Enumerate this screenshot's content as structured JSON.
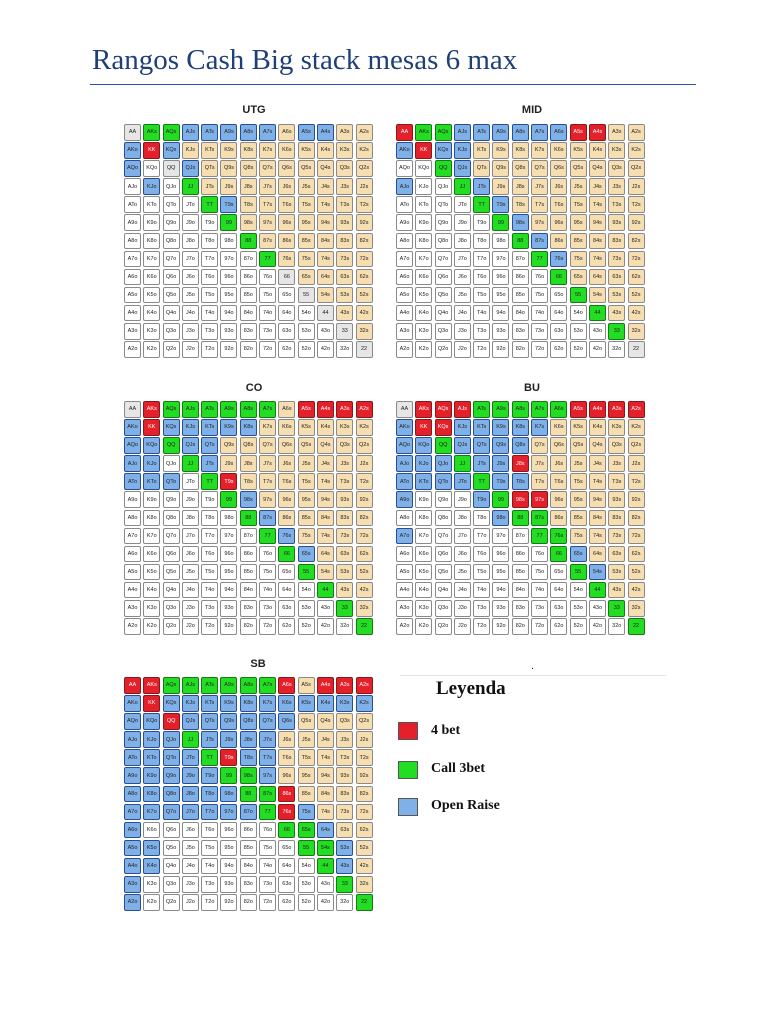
{
  "title": "Rangos Cash Big stack mesas 6 max",
  "ranks": [
    "A",
    "K",
    "Q",
    "J",
    "T",
    "9",
    "8",
    "7",
    "6",
    "5",
    "4",
    "3",
    "2"
  ],
  "colors": {
    "raise": "#7fb0e8",
    "call": "#22dd22",
    "fourbet": "#e4202b",
    "pair": "#e6e6e6",
    "suited": "#f6deb0",
    "offsuit": "#ffffff"
  },
  "panels": [
    {
      "id": "utg",
      "title": "UTG",
      "fourbet": [
        "KK"
      ],
      "call": [
        "AKs",
        "AQs",
        "JJ",
        "TT",
        "99",
        "88",
        "77"
      ],
      "raise": [
        "AJs",
        "ATs",
        "A9s",
        "A8s",
        "A7s",
        "A5s",
        "A4s",
        "AKo",
        "KQs",
        "AQo",
        "KJo",
        "QJs",
        "T9s"
      ]
    },
    {
      "id": "mid",
      "title": "MID",
      "fourbet": [
        "AA",
        "KK",
        "A5s",
        "A4s"
      ],
      "call": [
        "AKs",
        "AQs",
        "QQ",
        "JJ",
        "TT",
        "99",
        "88",
        "77",
        "66",
        "55",
        "44",
        "33"
      ],
      "raise": [
        "AJs",
        "ATs",
        "A9s",
        "A8s",
        "A7s",
        "A6s",
        "AKo",
        "KQs",
        "KJs",
        "QJs",
        "AJo",
        "JTs",
        "T9s",
        "98s",
        "87s",
        "76s"
      ]
    },
    {
      "id": "co",
      "title": "CO",
      "fourbet": [
        "KK",
        "T9s",
        "AKs",
        "A5s",
        "A4s",
        "A3s",
        "A2s"
      ],
      "call": [
        "AQs",
        "AJs",
        "ATs",
        "A9s",
        "A8s",
        "A7s",
        "QQ",
        "JJ",
        "TT",
        "99",
        "88",
        "77",
        "66",
        "55",
        "44",
        "33",
        "22"
      ],
      "raise": [
        "AKo",
        "KQs",
        "KJs",
        "KTs",
        "K9s",
        "K8s",
        "AQo",
        "KQo",
        "QJs",
        "QTs",
        "AJo",
        "KJo",
        "JTs",
        "ATo",
        "KTo",
        "QTo",
        "98s",
        "87s",
        "76s",
        "65s"
      ]
    },
    {
      "id": "bu",
      "title": "BU",
      "fourbet": [
        "KK",
        "KQs",
        "AQs",
        "AJs",
        "AKs",
        "A5s",
        "A4s",
        "A3s",
        "A2s",
        "J8s",
        "97s",
        "98s"
      ],
      "call": [
        "ATs",
        "A9s",
        "A8s",
        "A7s",
        "A6s",
        "QQ",
        "JJ",
        "TT",
        "99",
        "88",
        "77",
        "66",
        "55",
        "44",
        "33",
        "22",
        "87s",
        "76s"
      ],
      "raise": [
        "AKo",
        "KJs",
        "KTs",
        "K9s",
        "K8s",
        "K7s",
        "AQo",
        "KQo",
        "QJs",
        "QTs",
        "Q9s",
        "Q8s",
        "AJo",
        "KJo",
        "QJo",
        "JTs",
        "J9s",
        "ATo",
        "KTo",
        "QTo",
        "JTo",
        "T9s",
        "T8s",
        "A9o",
        "T9o",
        "98o",
        "A7o",
        "65s",
        "54s"
      ]
    },
    {
      "id": "sb",
      "title": "SB",
      "fourbet": [
        "AA",
        "KK",
        "QQ",
        "AKs",
        "A6s",
        "A4s",
        "A3s",
        "A2s",
        "T9s",
        "86s",
        "76s"
      ],
      "call": [
        "AQs",
        "AJs",
        "ATs",
        "A9s",
        "A8s",
        "A7s",
        "JJ",
        "TT",
        "99",
        "88",
        "77",
        "66",
        "55",
        "44",
        "33",
        "22",
        "98s",
        "87s",
        "65s",
        "54s"
      ],
      "raise": [
        "AKo",
        "KQs",
        "KJs",
        "KTs",
        "K9s",
        "K8s",
        "K7s",
        "K6s",
        "K5s",
        "K4s",
        "K3s",
        "K2s",
        "AQo",
        "KQo",
        "QJs",
        "QTs",
        "Q9s",
        "Q8s",
        "Q7s",
        "Q6s",
        "AJo",
        "KJo",
        "QJo",
        "JTs",
        "J9s",
        "J8s",
        "J7s",
        "ATo",
        "KTo",
        "QTo",
        "JTo",
        "T8s",
        "T7s",
        "A9o",
        "K9o",
        "Q9o",
        "J9o",
        "T9o",
        "97s",
        "A8o",
        "K8o",
        "Q8o",
        "J8o",
        "T8o",
        "98o",
        "A7o",
        "K7o",
        "Q7o",
        "J7o",
        "T7o",
        "97o",
        "87o",
        "A6o",
        "A5o",
        "K5o",
        "A4o",
        "K4o",
        "A3o",
        "A2o",
        "75s",
        "64s",
        "53s",
        "43s"
      ]
    }
  ],
  "legend": {
    "title": "Leyenda",
    "items": [
      {
        "label": "4 bet",
        "color": "#e4202b"
      },
      {
        "label": "Call 3bet",
        "color": "#22dd22"
      },
      {
        "label": "Open Raise",
        "color": "#7fb0e8"
      }
    ]
  },
  "extra_label": "."
}
